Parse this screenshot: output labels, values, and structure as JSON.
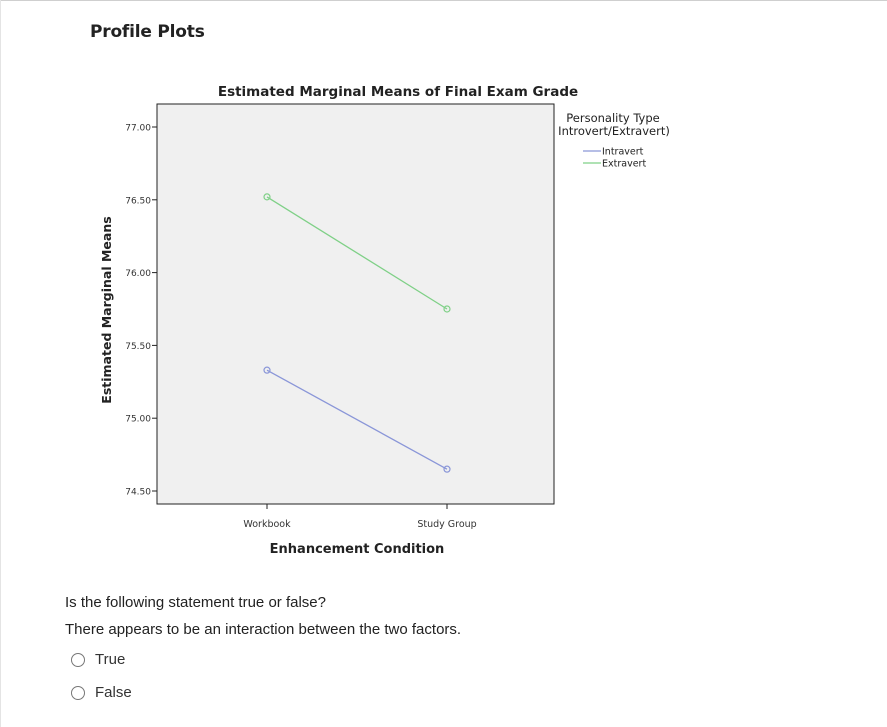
{
  "section_title": "Profile Plots",
  "chart_data": {
    "type": "line",
    "title": "Estimated Marginal Means of Final Exam Grade",
    "xlabel": "Enhancement Condition",
    "ylabel": "Estimated Marginal Means",
    "categories": [
      "Workbook",
      "Study Group"
    ],
    "yticks": [
      "74.50",
      "75.00",
      "75.50",
      "76.00",
      "76.50",
      "77.00"
    ],
    "ylim": [
      74.5,
      77.0
    ],
    "legend_title_line1": "Personality Type",
    "legend_title_line2": "Introvert/Extravert)",
    "legend_position": "top-right (outside plot)",
    "grid": false,
    "series": [
      {
        "name": "Intravert",
        "values": [
          75.33,
          74.65
        ],
        "color": "#8a96d8"
      },
      {
        "name": "Extravert",
        "values": [
          76.52,
          75.75
        ],
        "color": "#7fd087"
      }
    ],
    "plot_background": "#f0f0f0"
  },
  "question": {
    "line1": "Is the following statement true or false?",
    "line2": "There appears to be an interaction between the two factors.",
    "options": [
      "True",
      "False"
    ]
  }
}
